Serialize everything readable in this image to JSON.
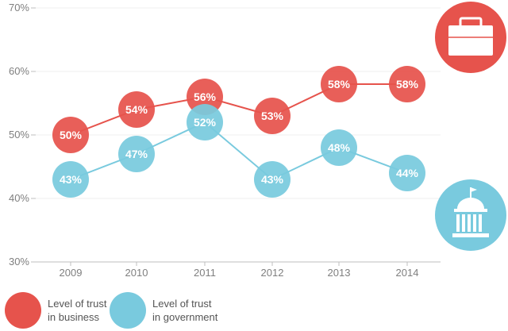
{
  "colors": {
    "business": "#e6534c",
    "government": "#79cade",
    "axis": "#bfbfbf",
    "tick_text": "#7f7f7f"
  },
  "icons": {
    "business": "briefcase-icon",
    "government": "government-building-icon"
  },
  "legend": {
    "business_line1": "Level of trust",
    "business_line2": "in business",
    "government_line1": "Level of trust",
    "government_line2": "in government"
  },
  "chart_data": {
    "type": "line",
    "title": "",
    "xlabel": "",
    "ylabel": "",
    "categories": [
      "2009",
      "2010",
      "2011",
      "2012",
      "2013",
      "2014"
    ],
    "ylim": [
      30,
      70
    ],
    "yticks": [
      30,
      40,
      50,
      60,
      70
    ],
    "ytick_labels": [
      "30%",
      "40%",
      "50%",
      "60%",
      "70%"
    ],
    "series": [
      {
        "name": "Level of trust in business",
        "key": "business",
        "values": [
          50,
          54,
          56,
          53,
          58,
          58
        ],
        "labels": [
          "50%",
          "54%",
          "56%",
          "53%",
          "58%",
          "58%"
        ]
      },
      {
        "name": "Level of trust in government",
        "key": "government",
        "values": [
          43,
          47,
          52,
          43,
          48,
          44
        ],
        "labels": [
          "43%",
          "47%",
          "52%",
          "43%",
          "48%",
          "44%"
        ]
      }
    ]
  }
}
